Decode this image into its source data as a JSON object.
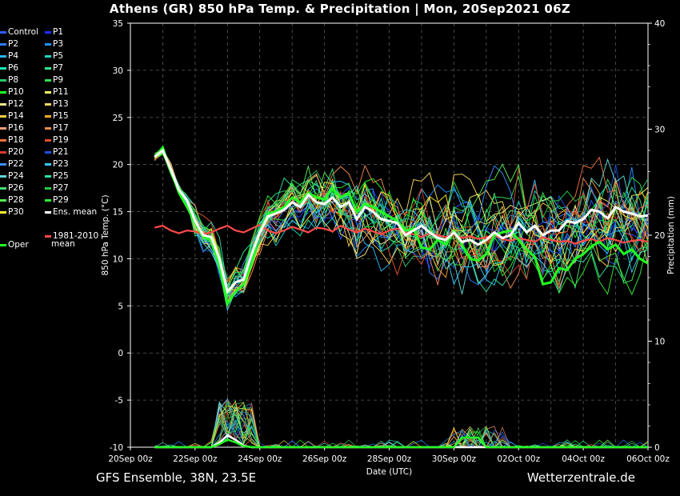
{
  "title": "Athens  (GR)  850 hPa Temp. & Precipitation | Mon, 20Sep2021 06Z",
  "footer": {
    "left": "GFS Ensemble, 38N, 23.5E",
    "right": "Wetterzentrale.de"
  },
  "chart_data": {
    "type": "line",
    "ylabel": "850 hPa Temp. (°C)",
    "y2label": "Precipitation (mm)",
    "xlabel": "Date (UTC)",
    "ylim": [
      -10,
      35
    ],
    "y2lim": [
      0,
      40
    ],
    "yticks": [
      "35",
      "30",
      "25",
      "20",
      "15",
      "10",
      "5",
      "0",
      "-5",
      "-10"
    ],
    "y2ticks": [
      "40",
      "30",
      "20",
      "10",
      "0"
    ],
    "xticks": [
      "20Sep 00z",
      "22Sep 00z",
      "24Sep 00z",
      "26Sep 00z",
      "28Sep 00z",
      "30Sep 00z",
      "02Oct 00z",
      "04Oct 00z",
      "06Oct 00z"
    ],
    "grid": true,
    "x_days": [
      0.75,
      1.0,
      1.25,
      1.5,
      1.75,
      2.0,
      2.25,
      2.5,
      2.75,
      3.0,
      3.25,
      3.5,
      3.75,
      4.0,
      4.25,
      4.5,
      4.75,
      5.0,
      5.25,
      5.5,
      5.75,
      6.0,
      6.25,
      6.5,
      6.75,
      7.0,
      7.25,
      7.5,
      7.75,
      8.0,
      8.25,
      8.5,
      8.75,
      9.0,
      9.25,
      9.5,
      9.75,
      10.0,
      10.25,
      10.5,
      10.75,
      11.0,
      11.25,
      11.5,
      11.75,
      12.0,
      12.25,
      12.5,
      12.75,
      13.0,
      13.25,
      13.5,
      13.75,
      14.0,
      14.25,
      14.5,
      14.75,
      15.0,
      15.25,
      15.5,
      15.75,
      16.0
    ],
    "ens_mean": [
      20.8,
      21.5,
      19.5,
      17.3,
      16.2,
      14.0,
      12.5,
      12.3,
      10.0,
      6.5,
      7.5,
      7.8,
      10.5,
      12.8,
      14.5,
      14.8,
      15.2,
      16.0,
      15.5,
      16.8,
      16.0,
      15.8,
      16.5,
      15.5,
      16.0,
      14.2,
      15.5,
      15.0,
      14.2,
      14.0,
      13.8,
      12.5,
      13.0,
      13.5,
      12.8,
      12.2,
      12.0,
      12.8,
      11.8,
      12.0,
      11.5,
      12.0,
      12.8,
      12.2,
      12.5,
      13.8,
      12.8,
      13.5,
      12.5,
      13.0,
      13.0,
      14.0,
      13.8,
      14.2,
      15.2,
      15.0,
      14.3,
      15.5,
      15.0,
      14.8,
      14.5,
      14.6
    ],
    "oper": [
      20.8,
      21.8,
      19.3,
      17.0,
      15.5,
      13.8,
      12.3,
      12.0,
      9.2,
      5.2,
      6.5,
      7.3,
      9.5,
      13.0,
      14.8,
      15.0,
      15.5,
      16.5,
      16.0,
      17.0,
      16.5,
      16.3,
      17.5,
      16.5,
      17.0,
      15.0,
      15.8,
      15.5,
      15.0,
      14.5,
      14.0,
      13.0,
      13.2,
      11.2,
      11.0,
      12.0,
      11.5,
      13.0,
      11.5,
      10.0,
      9.8,
      10.5,
      12.5,
      12.8,
      13.0,
      12.0,
      11.0,
      10.2,
      7.3,
      7.5,
      9.0,
      8.8,
      10.0,
      10.5,
      11.3,
      11.8,
      11.0,
      11.5,
      10.5,
      11.0,
      10.0,
      9.5
    ],
    "climate_mean": [
      13.3,
      13.5,
      13.0,
      12.7,
      13.0,
      12.9,
      12.6,
      12.8,
      13.2,
      13.5,
      13.0,
      12.8,
      13.2,
      13.6,
      13.0,
      12.7,
      13.0,
      13.4,
      13.1,
      12.8,
      13.3,
      13.2,
      12.9,
      13.5,
      13.1,
      12.8,
      13.2,
      12.9,
      12.6,
      13.0,
      13.2,
      12.8,
      12.6,
      12.3,
      12.7,
      12.5,
      12.3,
      12.6,
      12.2,
      12.4,
      12.1,
      12.3,
      12.5,
      12.1,
      11.9,
      12.2,
      12.0,
      11.8,
      12.3,
      12.0,
      11.8,
      11.9,
      11.6,
      11.9,
      12.1,
      11.8,
      12.2,
      12.0,
      11.7,
      11.9,
      12.0,
      11.8
    ],
    "precip_mean_mm": [
      0,
      0,
      0,
      0,
      0,
      0,
      0,
      0,
      0.3,
      0.8,
      0.5,
      0.1,
      0,
      0,
      0,
      0,
      0,
      0,
      0,
      0,
      0,
      0,
      0,
      0,
      0,
      0,
      0,
      0,
      0,
      0,
      0,
      0,
      0,
      0,
      0,
      0,
      0,
      0,
      0,
      0,
      0,
      0,
      0,
      0,
      0,
      0,
      0,
      0,
      0,
      0,
      0,
      0,
      0,
      0,
      0,
      0,
      0,
      0,
      0,
      0,
      0,
      0
    ],
    "members": [
      {
        "name": "Control",
        "color": "#2c5bff"
      },
      {
        "name": "P1",
        "color": "#2030ff"
      },
      {
        "name": "P2",
        "color": "#2d7dff"
      },
      {
        "name": "P3",
        "color": "#1e90ff"
      },
      {
        "name": "P4",
        "color": "#29b6f6"
      },
      {
        "name": "P5",
        "color": "#22d3c5"
      },
      {
        "name": "P6",
        "color": "#1de9b6"
      },
      {
        "name": "P7",
        "color": "#2ee88a"
      },
      {
        "name": "P8",
        "color": "#26c76b"
      },
      {
        "name": "P9",
        "color": "#33dd55"
      },
      {
        "name": "P10",
        "color": "#22ff22"
      },
      {
        "name": "P11",
        "color": "#f5f566"
      },
      {
        "name": "P12",
        "color": "#f2e88a"
      },
      {
        "name": "P13",
        "color": "#f5d55a"
      },
      {
        "name": "P14",
        "color": "#ffcc44"
      },
      {
        "name": "P15",
        "color": "#ffa722"
      },
      {
        "name": "P16",
        "color": "#f5a070"
      },
      {
        "name": "P17",
        "color": "#f08a50"
      },
      {
        "name": "P18",
        "color": "#f07040"
      },
      {
        "name": "P19",
        "color": "#e2502a"
      },
      {
        "name": "P20",
        "color": "#d83a2a"
      },
      {
        "name": "P21",
        "color": "#2050e0"
      },
      {
        "name": "P22",
        "color": "#3a8fff"
      },
      {
        "name": "P23",
        "color": "#33c8ff"
      },
      {
        "name": "P24",
        "color": "#5fd6d6"
      },
      {
        "name": "P25",
        "color": "#2ee0a8"
      },
      {
        "name": "P26",
        "color": "#40e070"
      },
      {
        "name": "P27",
        "color": "#22cc44"
      },
      {
        "name": "P28",
        "color": "#55ee55"
      },
      {
        "name": "P29",
        "color": "#33ee33"
      },
      {
        "name": "P30",
        "color": "#ffee33"
      }
    ],
    "legend_extra": [
      {
        "name": "Ens. mean",
        "color": "#ffffff"
      },
      {
        "name": "1981-2010",
        "name2": "mean",
        "color": "#ff4a4a"
      },
      {
        "name": "Oper",
        "color": "#22ff22"
      }
    ]
  }
}
